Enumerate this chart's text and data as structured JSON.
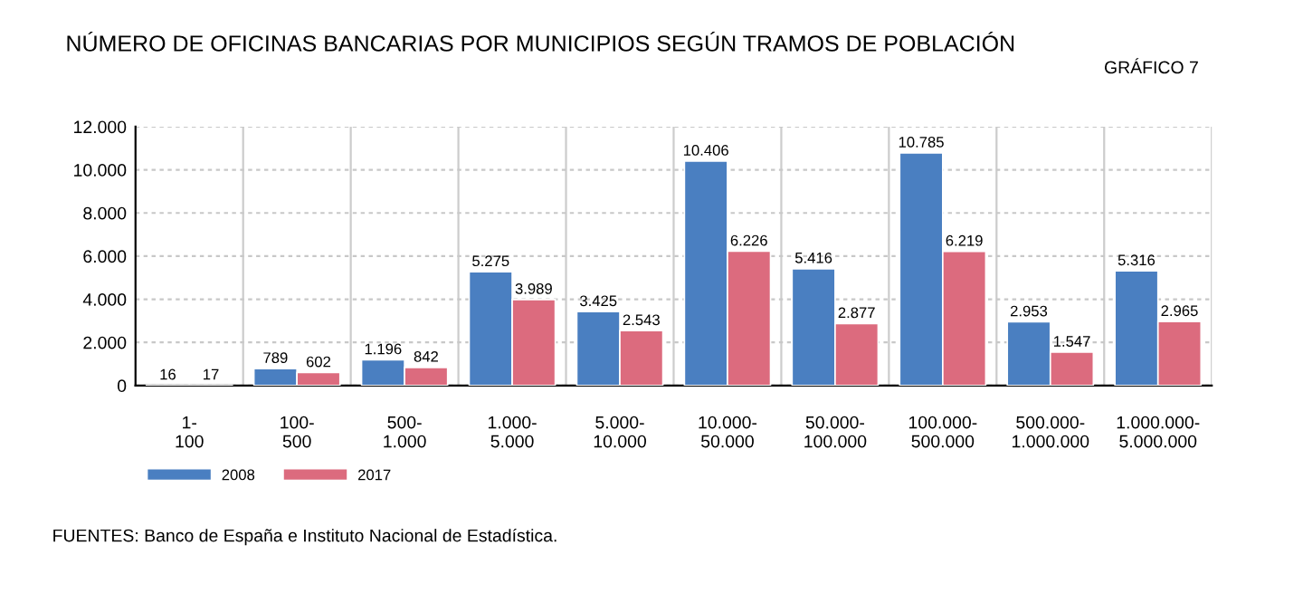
{
  "chart_data": {
    "type": "bar",
    "title": "NÚMERO DE OFICINAS BANCARIAS POR MUNICIPIOS SEGÚN TRAMOS DE POBLACIÓN",
    "categories": [
      "1-\n100",
      "100-\n500",
      "500-\n1.000",
      "1.000-\n5.000",
      "5.000-\n10.000",
      "10.000-\n50.000",
      "50.000-\n100.000",
      "100.000-\n500.000",
      "500.000-\n1.000.000",
      "1.000.000-\n5.000.000"
    ],
    "series": [
      {
        "name": "2008",
        "color": "#4a7fc1",
        "values": [
          16,
          789,
          1196,
          5275,
          3425,
          10406,
          5416,
          10785,
          2953,
          5316
        ],
        "value_labels": [
          "16",
          "789",
          "1.196",
          "5.275",
          "3.425",
          "10.406",
          "5.416",
          "10.785",
          "2.953",
          "5.316"
        ]
      },
      {
        "name": "2017",
        "color": "#dc6b7e",
        "values": [
          17,
          602,
          842,
          3989,
          2543,
          6226,
          2877,
          6219,
          1547,
          2965
        ],
        "value_labels": [
          "17",
          "602",
          "842",
          "3.989",
          "2.543",
          "6.226",
          "2.877",
          "6.219",
          "1.547",
          "2.965"
        ]
      }
    ],
    "ylim": [
      0,
      12000
    ],
    "yticks": [
      0,
      {
        "value": 2000,
        "label": "2.000"
      },
      {
        "value": 4000,
        "label": "4.000"
      },
      {
        "value": 6000,
        "label": "6.000"
      },
      {
        "value": 8000,
        "label": "8.000"
      },
      {
        "value": 10000,
        "label": "10.000"
      },
      {
        "value": 12000,
        "label": "12.000"
      }
    ],
    "grid": true,
    "legend": "bottom left",
    "annotations": [
      "GRÁFICO 7",
      "FUENTES: Banco de España e Instituto Nacional de Estadística."
    ]
  }
}
